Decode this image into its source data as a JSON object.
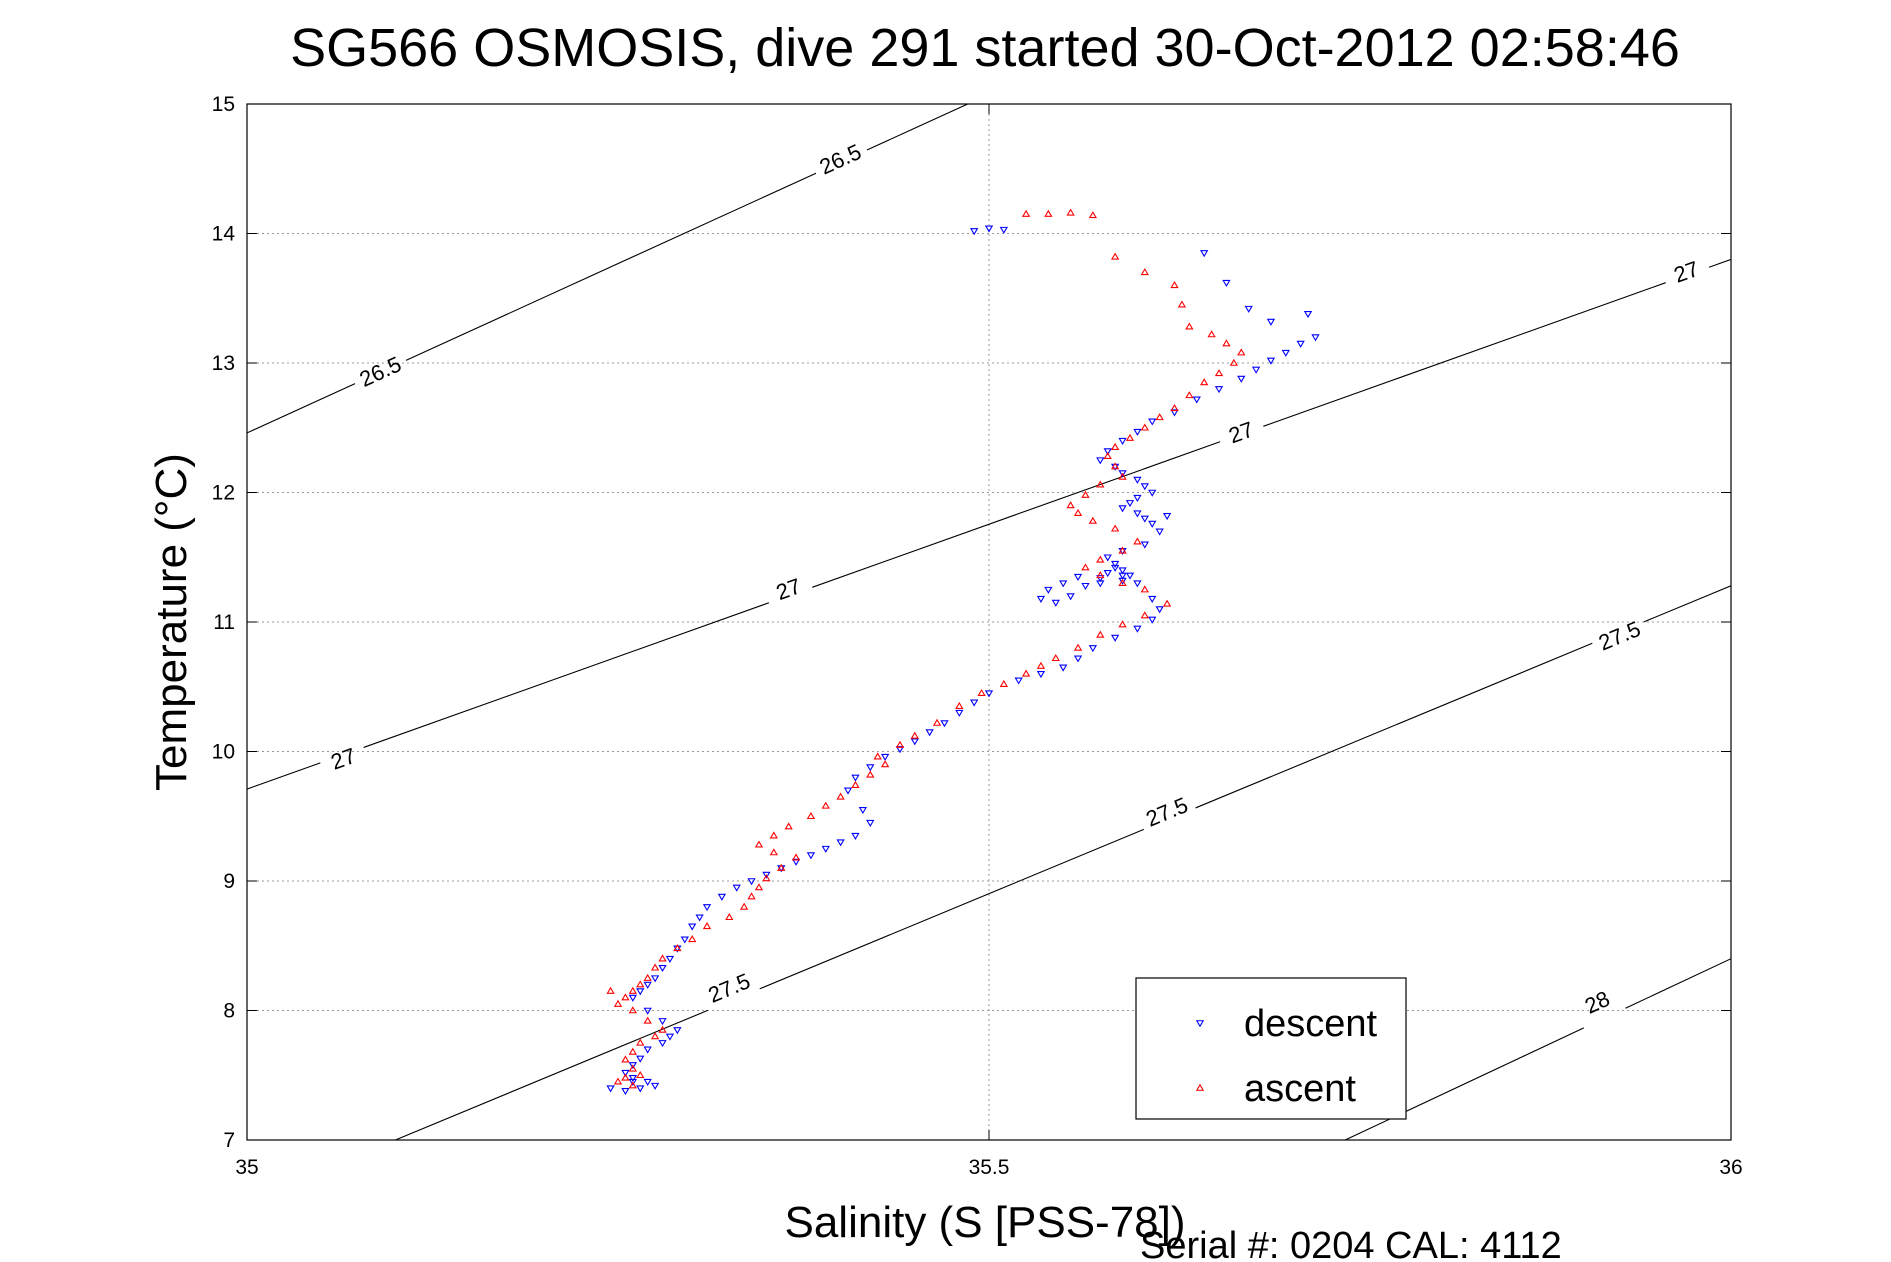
{
  "chart_data": {
    "type": "scatter",
    "title": "SG566 OSMOSIS, dive 291 started 30-Oct-2012 02:58:46",
    "xlabel": "Salinity (S [PSS-78])",
    "ylabel": "Temperature (°C)",
    "xlim": [
      35,
      36
    ],
    "ylim": [
      7,
      15
    ],
    "xticks": [
      35,
      35.5,
      36
    ],
    "xtick_labels": [
      "35",
      "35.5",
      "36"
    ],
    "yticks": [
      7,
      8,
      9,
      10,
      11,
      12,
      13,
      14,
      15
    ],
    "ytick_labels": [
      "7",
      "8",
      "9",
      "10",
      "11",
      "12",
      "13",
      "14",
      "15"
    ],
    "grid": true,
    "legend_position": "bottom-right",
    "annotation": "Serial #: 0204  CAL: 4112",
    "density_contours": [
      {
        "level": "26.5",
        "points": [
          [
            35.0,
            12.46
          ],
          [
            36.0,
            17.69
          ]
        ],
        "labels": [
          [
            35.09,
            12.93
          ],
          [
            35.4,
            14.57
          ]
        ]
      },
      {
        "level": "27",
        "points": [
          [
            35.0,
            9.71
          ],
          [
            36.0,
            13.8
          ]
        ],
        "labels": [
          [
            35.065,
            9.94
          ],
          [
            35.365,
            11.25
          ],
          [
            35.67,
            12.46
          ],
          [
            35.97,
            13.7
          ]
        ]
      },
      {
        "level": "27.5",
        "points": [
          [
            35.1,
            7.0
          ],
          [
            36.0,
            11.28
          ]
        ],
        "labels": [
          [
            35.325,
            8.17
          ],
          [
            35.62,
            9.53
          ],
          [
            35.925,
            10.89
          ]
        ]
      },
      {
        "level": "28",
        "points": [
          [
            35.74,
            7.0
          ],
          [
            36.0,
            8.4
          ]
        ],
        "labels": [
          [
            35.91,
            8.06
          ]
        ]
      }
    ],
    "series": [
      {
        "name": "descent",
        "color": "#0000ff",
        "marker": "triangle-down",
        "x": [
          35.49,
          35.5,
          35.51,
          35.645,
          35.66,
          35.675,
          35.69,
          35.715,
          35.72,
          35.71,
          35.7,
          35.69,
          35.68,
          35.67,
          35.655,
          35.64,
          35.625,
          35.61,
          35.6,
          35.59,
          35.58,
          35.575,
          35.585,
          35.59,
          35.6,
          35.605,
          35.61,
          35.6,
          35.595,
          35.59,
          35.6,
          35.605,
          35.61,
          35.62,
          35.615,
          35.605,
          35.59,
          35.58,
          35.585,
          35.59,
          35.595,
          35.59,
          35.575,
          35.56,
          35.55,
          35.54,
          35.535,
          35.545,
          35.555,
          35.565,
          35.575,
          35.58,
          35.585,
          35.59,
          35.6,
          35.61,
          35.615,
          35.61,
          35.6,
          35.585,
          35.57,
          35.56,
          35.55,
          35.535,
          35.52,
          35.5,
          35.49,
          35.48,
          35.47,
          35.46,
          35.45,
          35.44,
          35.43,
          35.42,
          35.41,
          35.405,
          35.415,
          35.42,
          35.41,
          35.4,
          35.39,
          35.38,
          35.37,
          35.36,
          35.35,
          35.34,
          35.33,
          35.32,
          35.31,
          35.305,
          35.3,
          35.295,
          35.29,
          35.285,
          35.28,
          35.275,
          35.27,
          35.265,
          35.26,
          35.27,
          35.28,
          35.29,
          35.285,
          35.28,
          35.27,
          35.265,
          35.26,
          35.255,
          35.26,
          35.27,
          35.275,
          35.265,
          35.255,
          35.245,
          35.26
        ],
        "y": [
          14.02,
          14.04,
          14.03,
          13.85,
          13.62,
          13.42,
          13.32,
          13.38,
          13.2,
          13.15,
          13.08,
          13.02,
          12.95,
          12.88,
          12.8,
          12.72,
          12.62,
          12.55,
          12.47,
          12.4,
          12.32,
          12.25,
          12.2,
          12.15,
          12.1,
          12.05,
          12.0,
          11.96,
          11.92,
          11.88,
          11.84,
          11.8,
          11.76,
          11.82,
          11.7,
          11.6,
          11.55,
          11.5,
          11.45,
          11.4,
          11.36,
          11.32,
          11.3,
          11.35,
          11.3,
          11.25,
          11.18,
          11.15,
          11.2,
          11.28,
          11.34,
          11.38,
          11.42,
          11.36,
          11.3,
          11.18,
          11.1,
          11.02,
          10.95,
          10.88,
          10.8,
          10.72,
          10.65,
          10.6,
          10.55,
          10.45,
          10.38,
          10.3,
          10.22,
          10.15,
          10.08,
          10.02,
          9.96,
          9.88,
          9.8,
          9.7,
          9.55,
          9.45,
          9.35,
          9.3,
          9.25,
          9.2,
          9.15,
          9.1,
          9.05,
          9.0,
          8.95,
          8.88,
          8.8,
          8.72,
          8.65,
          8.55,
          8.48,
          8.4,
          8.33,
          8.25,
          8.2,
          8.15,
          8.1,
          8.0,
          7.92,
          7.85,
          7.8,
          7.75,
          7.7,
          7.63,
          7.58,
          7.52,
          7.48,
          7.45,
          7.42,
          7.4,
          7.38,
          7.4,
          7.45
        ]
      },
      {
        "name": "ascent",
        "color": "#ff0000",
        "marker": "triangle-up",
        "x": [
          35.525,
          35.54,
          35.555,
          35.57,
          35.585,
          35.605,
          35.625,
          35.63,
          35.635,
          35.65,
          35.66,
          35.67,
          35.665,
          35.655,
          35.645,
          35.635,
          35.625,
          35.615,
          35.605,
          35.595,
          35.585,
          35.58,
          35.585,
          35.59,
          35.575,
          35.565,
          35.555,
          35.56,
          35.57,
          35.585,
          35.6,
          35.59,
          35.575,
          35.565,
          35.575,
          35.59,
          35.605,
          35.62,
          35.605,
          35.59,
          35.575,
          35.56,
          35.545,
          35.535,
          35.525,
          35.51,
          35.495,
          35.48,
          35.465,
          35.45,
          35.44,
          35.425,
          35.43,
          35.42,
          35.41,
          35.4,
          35.39,
          35.38,
          35.365,
          35.355,
          35.345,
          35.355,
          35.37,
          35.36,
          35.35,
          35.345,
          35.34,
          35.335,
          35.325,
          35.31,
          35.3,
          35.29,
          35.28,
          35.275,
          35.27,
          35.265,
          35.26,
          35.255,
          35.25,
          35.245,
          35.26,
          35.27,
          35.28,
          35.275,
          35.265,
          35.26,
          35.255,
          35.26,
          35.265,
          35.255,
          35.25,
          35.26
        ],
        "y": [
          14.15,
          14.15,
          14.16,
          14.14,
          13.82,
          13.7,
          13.6,
          13.45,
          13.28,
          13.22,
          13.15,
          13.08,
          13.0,
          12.92,
          12.85,
          12.75,
          12.65,
          12.58,
          12.5,
          12.42,
          12.35,
          12.28,
          12.2,
          12.12,
          12.06,
          11.98,
          11.9,
          11.84,
          11.78,
          11.72,
          11.62,
          11.55,
          11.48,
          11.42,
          11.36,
          11.3,
          11.25,
          11.14,
          11.05,
          10.98,
          10.9,
          10.8,
          10.72,
          10.66,
          10.6,
          10.52,
          10.45,
          10.35,
          10.22,
          10.12,
          10.05,
          9.96,
          9.9,
          9.82,
          9.74,
          9.65,
          9.58,
          9.5,
          9.42,
          9.35,
          9.28,
          9.22,
          9.18,
          9.1,
          9.02,
          8.95,
          8.88,
          8.8,
          8.72,
          8.65,
          8.55,
          8.48,
          8.4,
          8.33,
          8.25,
          8.2,
          8.15,
          8.1,
          8.05,
          8.15,
          8.0,
          7.92,
          7.85,
          7.8,
          7.75,
          7.68,
          7.62,
          7.55,
          7.5,
          7.48,
          7.45,
          7.42
        ]
      }
    ]
  }
}
